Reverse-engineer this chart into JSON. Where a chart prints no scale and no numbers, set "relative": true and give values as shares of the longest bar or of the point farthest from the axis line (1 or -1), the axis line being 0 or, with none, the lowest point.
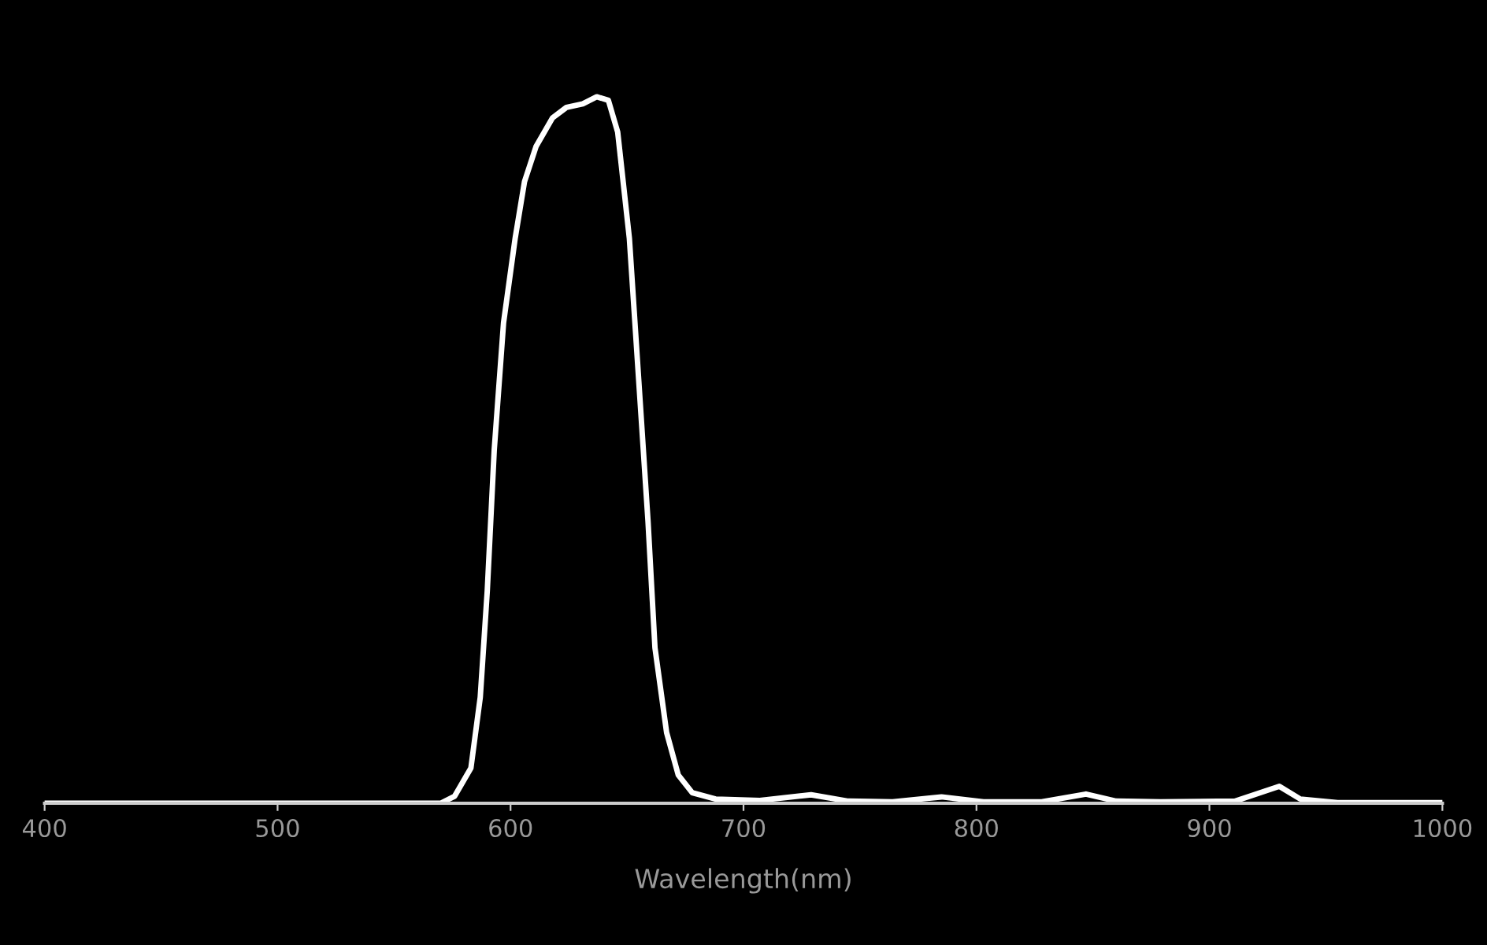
{
  "chart_data": {
    "type": "line",
    "relative": true,
    "xlabel": "Wavelength(nm)",
    "xlim": [
      400,
      1000
    ],
    "xticks": [
      400,
      500,
      600,
      700,
      800,
      900,
      1000
    ],
    "grid": false,
    "marker": "none",
    "line_style": "solid",
    "series": [
      {
        "color": "#ffffff",
        "x": [
          400,
          500,
          570,
          576,
          583,
          587,
          590,
          593,
          597,
          602,
          606,
          611,
          618,
          624,
          631,
          637,
          642,
          646,
          651,
          655,
          659,
          662,
          667,
          672,
          678,
          688,
          707,
          729,
          745,
          764,
          785,
          803,
          828,
          847,
          860,
          879,
          911,
          930,
          939,
          955,
          1000
        ],
        "values": [
          0,
          0,
          0,
          0.01,
          0.05,
          0.15,
          0.3,
          0.5,
          0.68,
          0.8,
          0.88,
          0.93,
          0.97,
          0.985,
          0.99,
          1.0,
          0.995,
          0.95,
          0.8,
          0.6,
          0.4,
          0.22,
          0.1,
          0.04,
          0.015,
          0.006,
          0.004,
          0.012,
          0.003,
          0.002,
          0.009,
          0.002,
          0.002,
          0.013,
          0.003,
          0.002,
          0.003,
          0.024,
          0.006,
          0.001,
          0.001
        ]
      }
    ]
  }
}
